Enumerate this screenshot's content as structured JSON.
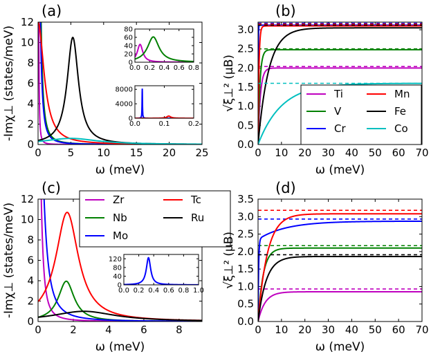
{
  "figure": {
    "description_free": true
  },
  "colors": {
    "Ti": "#bf00bf",
    "V": "#008000",
    "Cr": "#0000ff",
    "Mn": "#ff0000",
    "Fe": "#000000",
    "Co": "#00bfbf",
    "Zr": "#bf00bf",
    "Nb": "#008000",
    "Mo": "#0000ff",
    "Tc": "#ff0000",
    "Ru": "#000000"
  },
  "chart_data": [
    {
      "id": "a",
      "panel_label": "(a)",
      "type": "line",
      "xlabel": "ω (meV)",
      "ylabel": "-Imχ⊥ (states/meV)",
      "xlim": [
        0,
        25
      ],
      "ylim": [
        0,
        12
      ],
      "xticks": [
        "0",
        "5",
        "10",
        "15",
        "20",
        "25"
      ],
      "yticks": [
        "0",
        "2",
        "4",
        "6",
        "8",
        "10",
        "12"
      ],
      "series": [
        {
          "name": "Ti",
          "color": "#bf00bf",
          "kind": "lorentz",
          "gamma": 0.07,
          "h": 40,
          "x0": 0
        },
        {
          "name": "V",
          "color": "#008000",
          "kind": "lorentz",
          "gamma": 0.25,
          "h": 55,
          "x0": 0
        },
        {
          "name": "Cr",
          "color": "#0000ff",
          "kind": "lorentz",
          "gamma": 0.3,
          "h": 30,
          "x0": 0
        },
        {
          "name": "Mn",
          "color": "#ff0000",
          "kind": "lorentz",
          "gamma": 1.1,
          "h": 12,
          "x0": 0
        },
        {
          "name": "Fe",
          "color": "#000000",
          "kind": "lorentz",
          "gamma": 1.05,
          "h": 10.5,
          "x0": 5.3
        },
        {
          "name": "Co",
          "color": "#00bfbf",
          "kind": "lorentz",
          "gamma": 5.0,
          "h": 0.6,
          "x0": 5.0
        }
      ],
      "insets": [
        {
          "xlim": [
            0,
            0.8
          ],
          "ylim": [
            0,
            80
          ],
          "xticks": [
            "0.0",
            "0.2",
            "0.4",
            "0.6",
            "0.8"
          ],
          "yticks": [
            "0",
            "20",
            "40",
            "60",
            "80"
          ],
          "series": [
            {
              "name": "Ti",
              "color": "#bf00bf",
              "kind": "lorentz",
              "gamma": 0.045,
              "h": 43,
              "x0": 0.07
            },
            {
              "name": "V",
              "color": "#008000",
              "kind": "lorentz",
              "gamma": 0.095,
              "h": 61,
              "x0": 0.25
            }
          ]
        },
        {
          "xlim": [
            0,
            0.2
          ],
          "ylim": [
            0,
            9000
          ],
          "xticks": [
            "0.0",
            "0.1",
            "0.2"
          ],
          "yticks": [
            "0",
            "4000",
            "8000"
          ],
          "series": [
            {
              "name": "Cr",
              "color": "#0000ff",
              "kind": "lorentz",
              "gamma": 0.0008,
              "h": 8200,
              "x0": 0.025
            },
            {
              "name": "Mn",
              "color": "#ff0000",
              "kind": "lorentz",
              "gamma": 0.008,
              "h": 600,
              "x0": 0.115
            }
          ]
        }
      ]
    },
    {
      "id": "b",
      "panel_label": "(b)",
      "type": "line",
      "xlabel": "ω (meV)",
      "ylabel": "√ξ⊥² (μB)",
      "xlim": [
        0,
        70
      ],
      "ylim": [
        0,
        3.2
      ],
      "xticks": [
        "0",
        "10",
        "20",
        "30",
        "40",
        "50",
        "60",
        "70"
      ],
      "yticks": [
        "0.0",
        "0.5",
        "1.0",
        "1.5",
        "2.0",
        "2.5",
        "3.0"
      ],
      "series": [
        {
          "name": "Ti",
          "color": "#bf00bf",
          "kind": "sat",
          "f": 2.0,
          "k": 1.0,
          "ref": 2.04
        },
        {
          "name": "V",
          "color": "#008000",
          "kind": "sat",
          "f": 2.48,
          "k": 0.8,
          "ref": 2.5
        },
        {
          "name": "Cr",
          "color": "#0000ff",
          "kind": "sat",
          "f": 3.12,
          "k": 0.08,
          "ref": 3.17
        },
        {
          "name": "Mn",
          "color": "#ff0000",
          "kind": "sat",
          "f": 3.1,
          "k": 0.4,
          "ref": 3.15
        },
        {
          "name": "Fe",
          "color": "#000000",
          "kind": "sat",
          "f": 3.05,
          "k": 4.5,
          "ref": 3.12
        },
        {
          "name": "Co",
          "color": "#00bfbf",
          "kind": "sat",
          "f": 1.6,
          "k": 10.0,
          "ref": 1.6
        }
      ],
      "legend": {
        "position": "lower-right",
        "entries": [
          "Ti",
          "Mn",
          "V",
          "Fe",
          "Cr",
          "Co"
        ]
      }
    },
    {
      "id": "c",
      "panel_label": "(c)",
      "type": "line",
      "xlabel": "ω (meV)",
      "ylabel": "-Imχ⊥ (states/meV)",
      "xlim": [
        0,
        9.3
      ],
      "ylim": [
        0,
        12
      ],
      "xticks": [
        "0",
        "2",
        "4",
        "6",
        "8"
      ],
      "yticks": [
        "0",
        "2",
        "4",
        "6",
        "8",
        "10",
        "12"
      ],
      "series": [
        {
          "name": "Zr",
          "color": "#bf00bf",
          "kind": "lorentz",
          "gamma": 0.15,
          "h": 30,
          "x0": 0
        },
        {
          "name": "Nb",
          "color": "#008000",
          "kind": "lorentz",
          "gamma": 0.55,
          "h": 3.95,
          "x0": 1.6
        },
        {
          "name": "Mo",
          "color": "#0000ff",
          "kind": "lorentz",
          "gamma": 0.28,
          "h": 30,
          "x0": 0
        },
        {
          "name": "Tc",
          "color": "#ff0000",
          "kind": "lorentz",
          "gamma": 0.78,
          "h": 10.7,
          "x0": 1.65
        },
        {
          "name": "Ru",
          "color": "#000000",
          "kind": "lorentz",
          "gamma": 2.2,
          "h": 1.0,
          "x0": 2.6
        }
      ],
      "legend": {
        "position": "top-right",
        "entries": [
          "Zr",
          "Tc",
          "Nb",
          "Ru",
          "Mo"
        ]
      },
      "insets": [
        {
          "xlim": [
            0,
            1.0
          ],
          "ylim": [
            0,
            140
          ],
          "xticks": [
            "0.0",
            "0.2",
            "0.4",
            "0.6",
            "0.8",
            "1.0"
          ],
          "yticks": [
            "0",
            "40",
            "80",
            "120"
          ],
          "series": [
            {
              "name": "Mo",
              "color": "#0000ff",
              "kind": "lorentz",
              "gamma": 0.035,
              "h": 125,
              "x0": 0.33
            }
          ]
        }
      ]
    },
    {
      "id": "d",
      "panel_label": "(d)",
      "type": "line",
      "xlabel": "ω (meV)",
      "ylabel": "√ξ⊥² (μB)",
      "xlim": [
        0,
        70
      ],
      "ylim": [
        0,
        3.5
      ],
      "xticks": [
        "0",
        "10",
        "20",
        "30",
        "40",
        "50",
        "60",
        "70"
      ],
      "yticks": [
        "0.0",
        "0.5",
        "1.0",
        "1.5",
        "2.0",
        "2.5",
        "3.0",
        "3.5"
      ],
      "series": [
        {
          "name": "Zr",
          "color": "#bf00bf",
          "kind": "sat",
          "f": 0.85,
          "k": 3.0,
          "ref": 0.93
        },
        {
          "name": "Nb",
          "color": "#008000",
          "kind": "sat",
          "f": 2.1,
          "k": 2.2,
          "ref": 2.17
        },
        {
          "name": "Mo",
          "color": "#0000ff",
          "kind": "mo",
          "f": 2.87,
          "ref": 2.93
        },
        {
          "name": "Tc",
          "color": "#ff0000",
          "kind": "sat",
          "f": 3.08,
          "k": 4.0,
          "ref": 3.18
        },
        {
          "name": "Ru",
          "color": "#000000",
          "kind": "sat",
          "f": 1.86,
          "k": 3.5,
          "ref": 1.91
        }
      ]
    }
  ]
}
